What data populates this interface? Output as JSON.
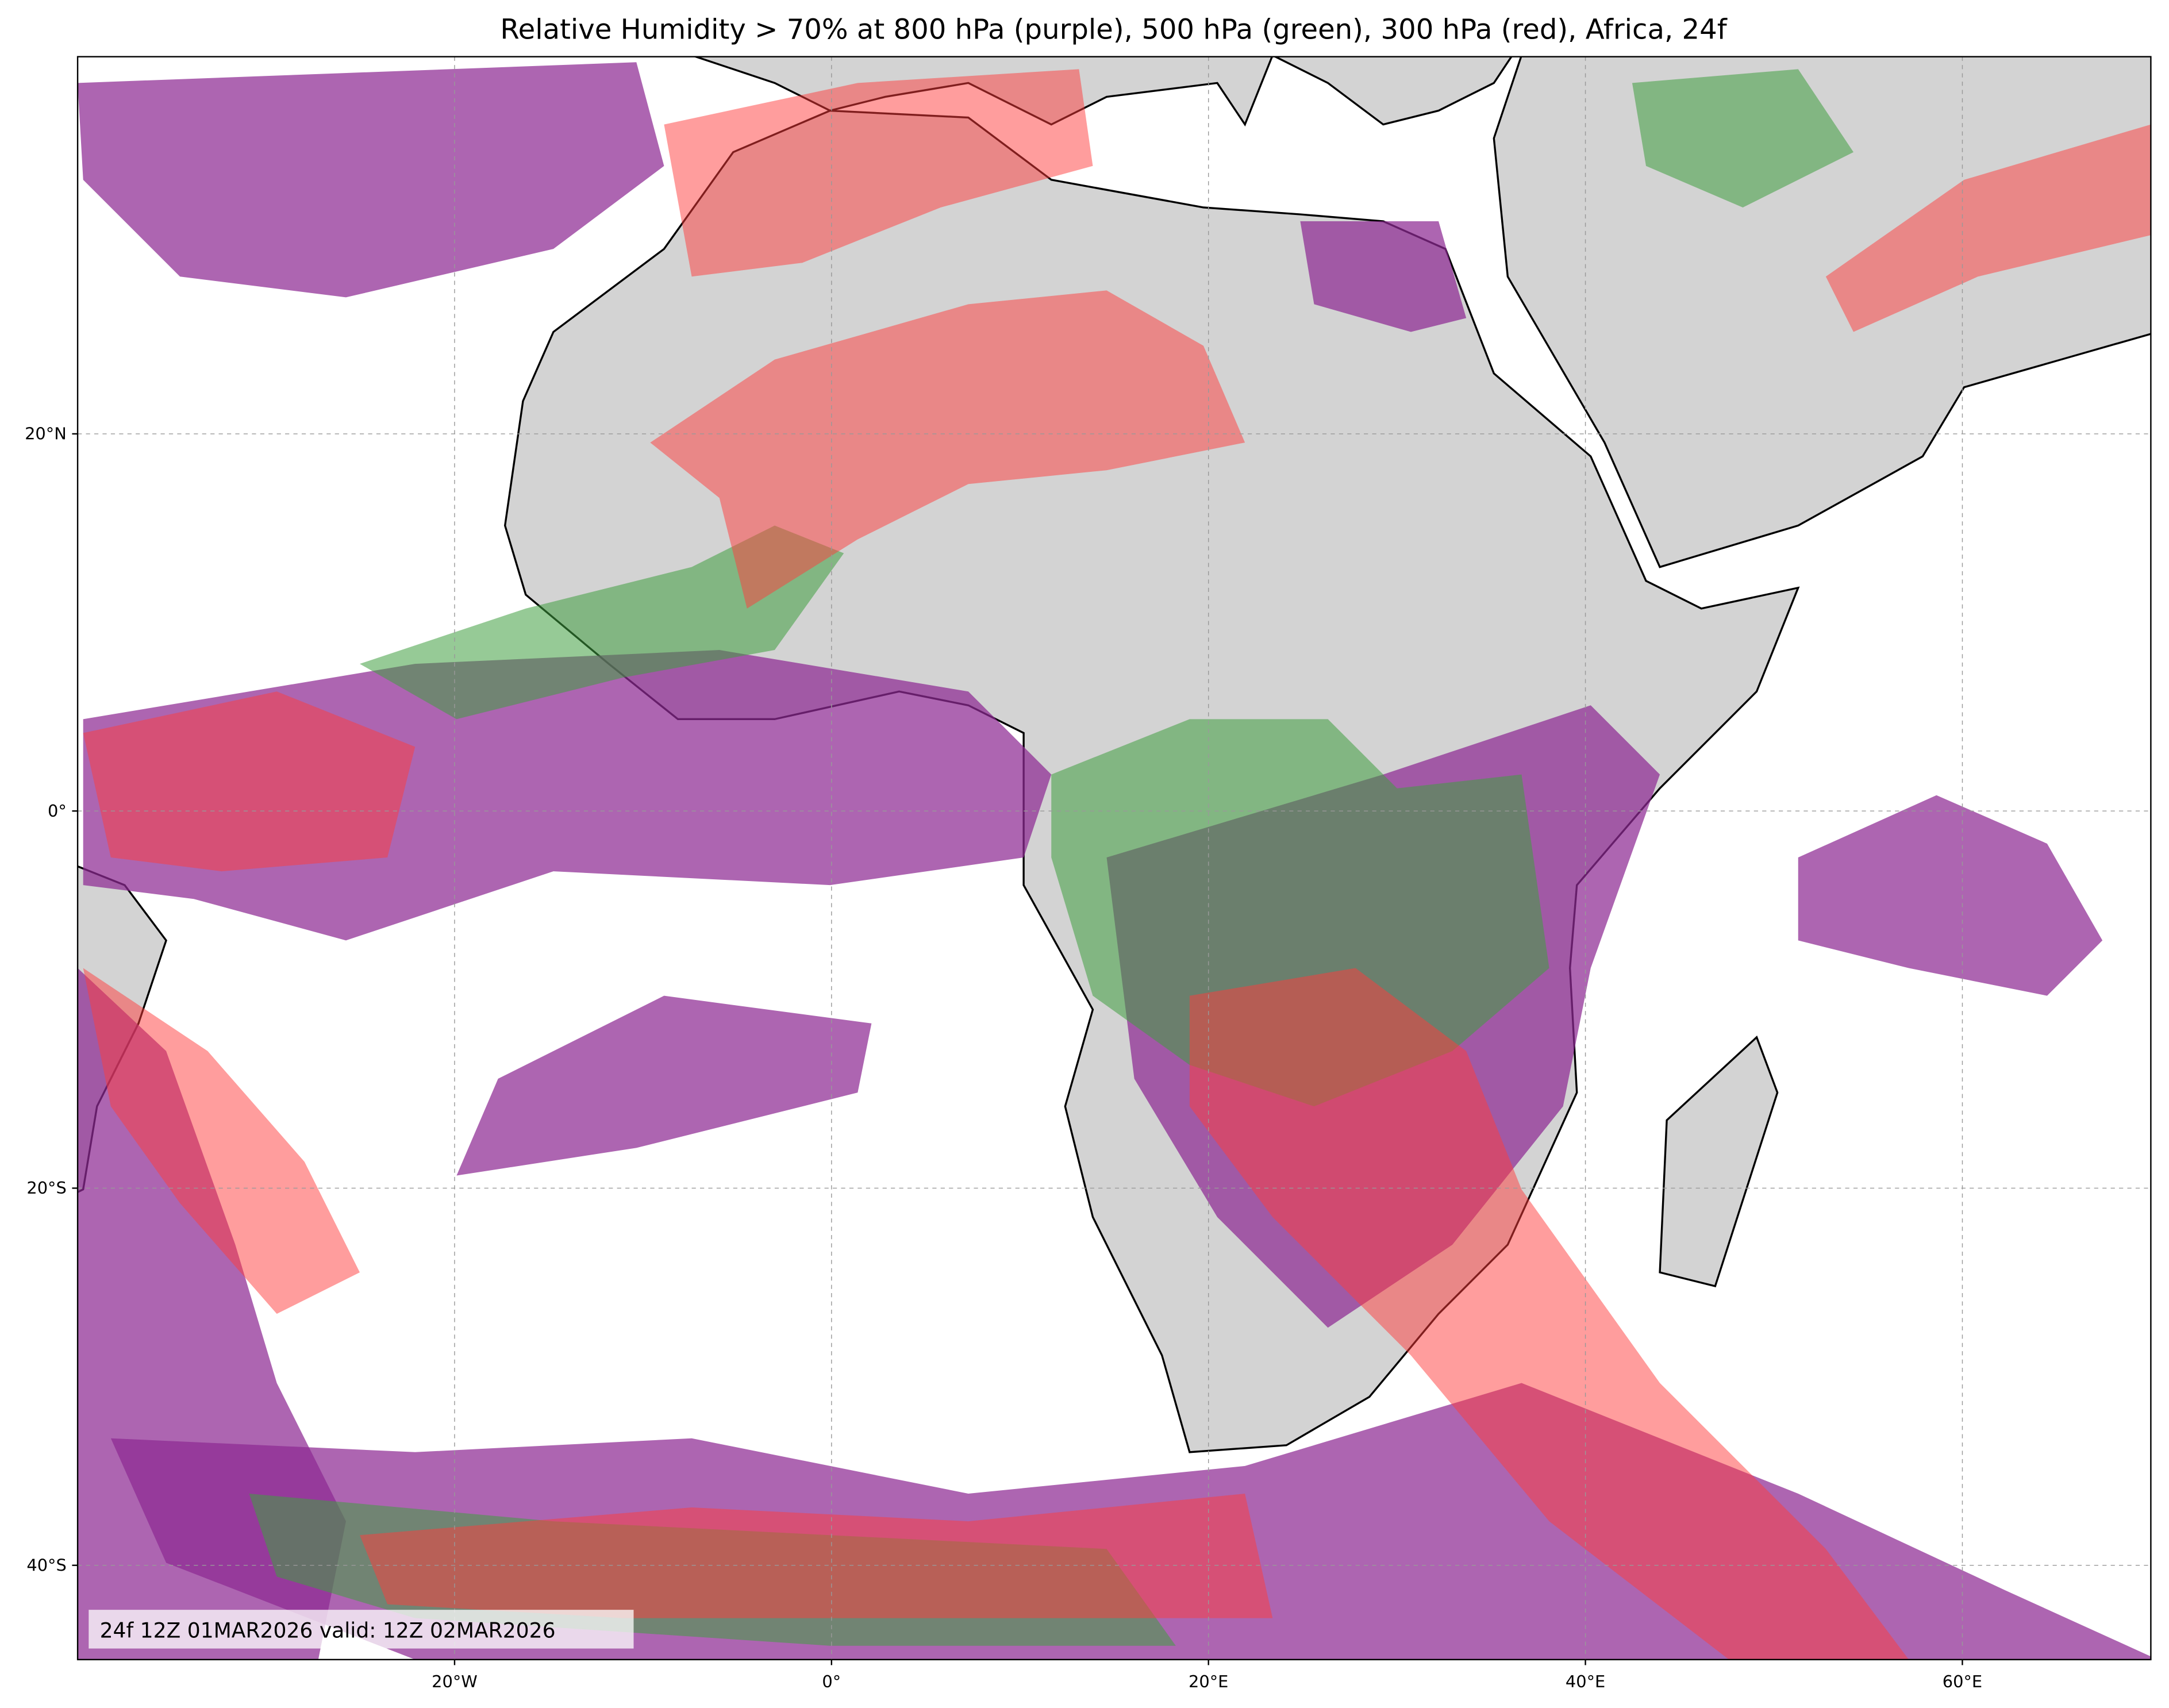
{
  "map": {
    "title": "Relative Humidity > 70% at 800 hPa (purple), 500 hPa (green), 300 hPa (red), Africa, 24f",
    "annotation": "24f 12Z 01MAR2026 valid: 12Z 02MAR2026",
    "xlim": [
      -40,
      70
    ],
    "ylim": [
      -45,
      40
    ],
    "xticks": [
      {
        "value": -20,
        "label": "20°W"
      },
      {
        "value": 0,
        "label": "0°"
      },
      {
        "value": 20,
        "label": "20°E"
      },
      {
        "value": 40,
        "label": "40°E"
      },
      {
        "value": 60,
        "label": "60°E"
      }
    ],
    "yticks": [
      {
        "value": 20,
        "label": "20°N"
      },
      {
        "value": 0,
        "label": "0°"
      },
      {
        "value": -20,
        "label": "20°S"
      },
      {
        "value": -40,
        "label": "40°S"
      }
    ],
    "grid": true
  }
}
